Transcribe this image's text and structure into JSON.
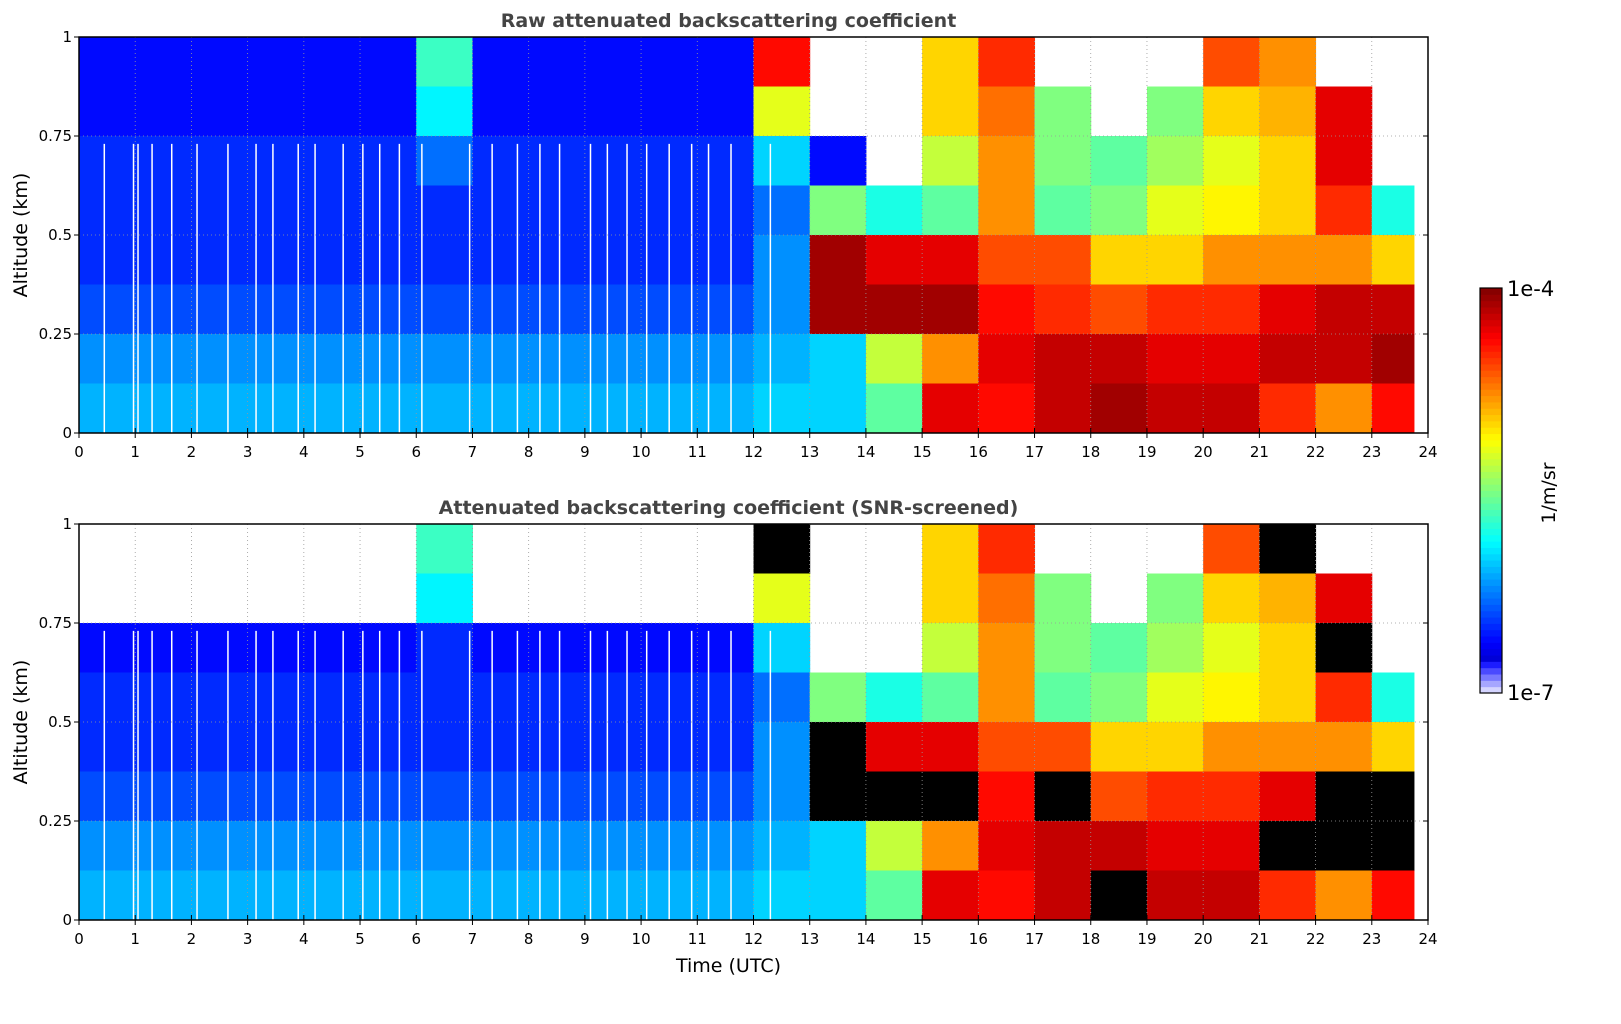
{
  "chart_data": [
    {
      "type": "heatmap",
      "title": "Raw attenuated backscattering coefficient",
      "xlabel": "",
      "ylabel": "Altitude (km)",
      "xlim": [
        0,
        24
      ],
      "ylim": [
        0,
        1
      ],
      "xticks": [
        "0",
        "1",
        "2",
        "3",
        "4",
        "5",
        "6",
        "7",
        "8",
        "9",
        "10",
        "11",
        "12",
        "13",
        "14",
        "15",
        "16",
        "17",
        "18",
        "19",
        "20",
        "21",
        "22",
        "23",
        "24"
      ],
      "yticks": [
        "0",
        "0.25",
        "0.5",
        "0.75",
        "1"
      ],
      "grid": true,
      "time_bins_utc_start": [
        0,
        1,
        2,
        3,
        4,
        5,
        6,
        7,
        8,
        9,
        10,
        11,
        12,
        13,
        14,
        15,
        16,
        17,
        18,
        19,
        20,
        21,
        22,
        23
      ],
      "data_end_utc": 23.75,
      "altitude_bins_km_top_to_bottom": [
        1.0,
        0.875,
        0.75,
        0.625,
        0.5,
        0.375,
        0.25,
        0.125
      ],
      "log10_values_rows_top_to_bottom": [
        [
          -6.6,
          -6.6,
          -6.6,
          -6.6,
          -6.6,
          -6.6,
          -5.7,
          -6.6,
          -6.6,
          -6.6,
          -6.6,
          -6.6,
          -4.4,
          null,
          null,
          -5.0,
          -4.5,
          null,
          null,
          null,
          -4.6,
          -4.8,
          null,
          null
        ],
        [
          -6.6,
          -6.6,
          -6.6,
          -6.6,
          -6.6,
          -6.6,
          -5.9,
          -6.6,
          -6.6,
          -6.6,
          -6.6,
          -6.6,
          -5.2,
          null,
          null,
          -5.0,
          -4.7,
          -5.5,
          null,
          -5.5,
          -5.0,
          -4.9,
          -4.3,
          null
        ],
        [
          -6.5,
          -6.5,
          -6.5,
          -6.5,
          -6.5,
          -6.5,
          -6.3,
          -6.5,
          -6.5,
          -6.5,
          -6.5,
          -6.5,
          -6.0,
          -6.6,
          null,
          -5.3,
          -4.8,
          -5.5,
          -5.6,
          -5.4,
          -5.2,
          -5.0,
          -4.3,
          null
        ],
        [
          -6.5,
          -6.5,
          -6.5,
          -6.5,
          -6.5,
          -6.5,
          -6.5,
          -6.5,
          -6.5,
          -6.5,
          -6.5,
          -6.5,
          -6.3,
          -5.5,
          -5.8,
          -5.6,
          -4.8,
          -5.6,
          -5.5,
          -5.2,
          -5.1,
          -5.0,
          -4.5,
          -5.8
        ],
        [
          -6.5,
          -6.5,
          -6.5,
          -6.5,
          -6.5,
          -6.5,
          -6.5,
          -6.5,
          -6.5,
          -6.5,
          -6.5,
          -6.5,
          -6.2,
          -4.1,
          -4.3,
          -4.3,
          -4.6,
          -4.6,
          -5.0,
          -5.0,
          -4.8,
          -4.8,
          -4.8,
          -5.0
        ],
        [
          -6.4,
          -6.4,
          -6.4,
          -6.4,
          -6.4,
          -6.4,
          -6.4,
          -6.4,
          -6.4,
          -6.4,
          -6.4,
          -6.4,
          -6.2,
          -4.1,
          -4.1,
          -4.1,
          -4.4,
          -4.5,
          -4.6,
          -4.5,
          -4.5,
          -4.3,
          -4.2,
          -4.2
        ],
        [
          -6.2,
          -6.2,
          -6.2,
          -6.2,
          -6.2,
          -6.2,
          -6.2,
          -6.2,
          -6.2,
          -6.2,
          -6.2,
          -6.2,
          -6.1,
          -6.0,
          -5.3,
          -4.8,
          -4.3,
          -4.2,
          -4.2,
          -4.3,
          -4.3,
          -4.2,
          -4.2,
          -4.1
        ],
        [
          -6.1,
          -6.1,
          -6.1,
          -6.1,
          -6.1,
          -6.1,
          -6.1,
          -6.1,
          -6.1,
          -6.1,
          -6.1,
          -6.1,
          -6.0,
          -6.0,
          -5.6,
          -4.3,
          -4.4,
          -4.2,
          -4.1,
          -4.2,
          -4.2,
          -4.5,
          -4.8,
          -4.4
        ]
      ]
    },
    {
      "type": "heatmap",
      "title": "Attenuated backscattering coefficient (SNR-screened)",
      "xlabel": "Time (UTC)",
      "ylabel": "Altitude (km)",
      "xlim": [
        0,
        24
      ],
      "ylim": [
        0,
        1
      ],
      "xticks": [
        "0",
        "1",
        "2",
        "3",
        "4",
        "5",
        "6",
        "7",
        "8",
        "9",
        "10",
        "11",
        "12",
        "13",
        "14",
        "15",
        "16",
        "17",
        "18",
        "19",
        "20",
        "21",
        "22",
        "23",
        "24"
      ],
      "yticks": [
        "0",
        "0.25",
        "0.5",
        "0.75",
        "1"
      ],
      "grid": true,
      "time_bins_utc_start": [
        0,
        1,
        2,
        3,
        4,
        5,
        6,
        7,
        8,
        9,
        10,
        11,
        12,
        13,
        14,
        15,
        16,
        17,
        18,
        19,
        20,
        21,
        22,
        23
      ],
      "data_end_utc": 23.75,
      "altitude_bins_km_top_to_bottom": [
        1.0,
        0.875,
        0.75,
        0.625,
        0.5,
        0.375,
        0.25,
        0.125
      ],
      "saturated_marker": "values above 1e-4 drawn black",
      "log10_values_rows_top_to_bottom": [
        [
          null,
          null,
          null,
          null,
          null,
          null,
          -5.7,
          null,
          null,
          null,
          null,
          null,
          -3.9,
          null,
          null,
          -5.0,
          -4.5,
          null,
          null,
          null,
          -4.6,
          -3.9,
          null,
          null
        ],
        [
          null,
          null,
          null,
          null,
          null,
          null,
          -5.9,
          null,
          null,
          null,
          null,
          null,
          -5.2,
          null,
          null,
          -5.0,
          -4.7,
          -5.5,
          null,
          -5.5,
          -5.0,
          -4.9,
          -4.3,
          null
        ],
        [
          -6.6,
          -6.6,
          -6.6,
          -6.6,
          -6.6,
          -6.6,
          -6.5,
          -6.6,
          -6.6,
          -6.6,
          -6.6,
          -6.6,
          -6.0,
          null,
          null,
          -5.3,
          -4.8,
          -5.5,
          -5.6,
          -5.4,
          -5.2,
          -5.0,
          -3.9,
          null
        ],
        [
          -6.5,
          -6.5,
          -6.5,
          -6.5,
          -6.5,
          -6.5,
          -6.5,
          -6.5,
          -6.5,
          -6.5,
          -6.5,
          -6.5,
          -6.3,
          -5.5,
          -5.8,
          -5.6,
          -4.8,
          -5.6,
          -5.5,
          -5.2,
          -5.1,
          -5.0,
          -4.5,
          -5.8
        ],
        [
          -6.5,
          -6.5,
          -6.5,
          -6.5,
          -6.5,
          -6.5,
          -6.5,
          -6.5,
          -6.5,
          -6.5,
          -6.5,
          -6.5,
          -6.2,
          -3.9,
          -4.3,
          -4.3,
          -4.6,
          -4.6,
          -5.0,
          -5.0,
          -4.8,
          -4.8,
          -4.8,
          -5.0
        ],
        [
          -6.4,
          -6.4,
          -6.4,
          -6.4,
          -6.4,
          -6.4,
          -6.4,
          -6.4,
          -6.4,
          -6.4,
          -6.4,
          -6.4,
          -6.2,
          -3.9,
          -3.9,
          -3.9,
          -4.4,
          -3.9,
          -4.6,
          -4.5,
          -4.5,
          -4.3,
          -3.9,
          -3.9
        ],
        [
          -6.2,
          -6.2,
          -6.2,
          -6.2,
          -6.2,
          -6.2,
          -6.2,
          -6.2,
          -6.2,
          -6.2,
          -6.2,
          -6.2,
          -6.1,
          -6.0,
          -5.3,
          -4.8,
          -4.3,
          -4.2,
          -4.2,
          -4.3,
          -4.3,
          -3.9,
          -3.9,
          -3.9
        ],
        [
          -6.1,
          -6.1,
          -6.1,
          -6.1,
          -6.1,
          -6.1,
          -6.1,
          -6.1,
          -6.1,
          -6.1,
          -6.1,
          -6.1,
          -6.0,
          -6.0,
          -5.6,
          -4.3,
          -4.4,
          -4.2,
          -3.9,
          -4.2,
          -4.2,
          -4.5,
          -4.8,
          -4.4
        ]
      ]
    }
  ],
  "gaps_utc": [
    0.45,
    0.97,
    1.05,
    1.3,
    1.65,
    2.1,
    2.65,
    3.15,
    3.45,
    3.9,
    4.2,
    4.7,
    5.05,
    5.35,
    5.7,
    6.1,
    6.95,
    7.35,
    7.8,
    8.2,
    8.55,
    9.1,
    9.4,
    9.75,
    10.1,
    10.5,
    10.9,
    11.2,
    11.6,
    12.3
  ],
  "colorbar": {
    "label": "1/m/sr",
    "max_label": "1e-4",
    "min_label": "1e-7",
    "log10_range": [
      -7,
      -4
    ],
    "colormap": "jet"
  }
}
